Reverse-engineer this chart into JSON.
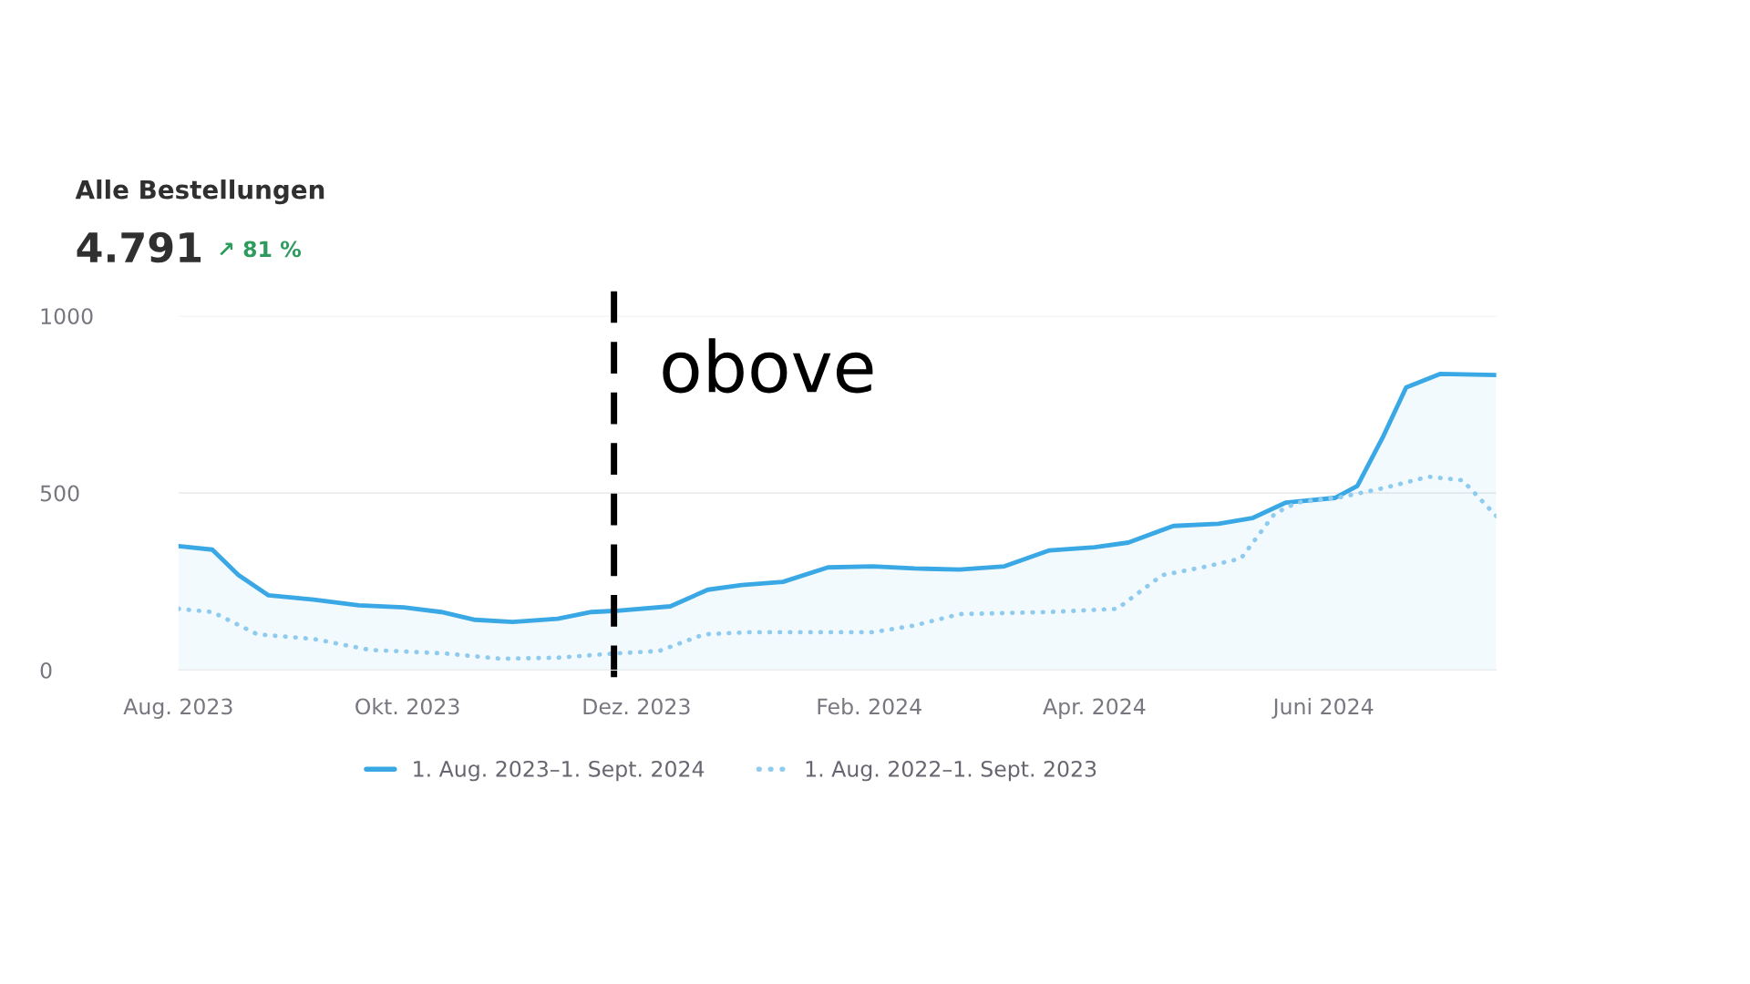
{
  "chart_data": {
    "type": "line",
    "title": "Alle Bestellungen",
    "subtitle": "4.791",
    "annotations": [
      "↗ 81 %"
    ],
    "series": [
      {
        "name": "1. Aug. 2023–1. Sept. 2024",
        "type": "area",
        "color": "#3aa8e4",
        "line_style": "solid",
        "x": [
          "2023-08-01",
          "2023-08-10",
          "2023-08-17",
          "2023-08-25",
          "2023-09-06",
          "2023-09-18",
          "2023-09-30",
          "2023-10-10",
          "2023-10-19",
          "2023-10-29",
          "2023-11-10",
          "2023-11-19",
          "2023-11-25",
          "2023-12-10",
          "2023-12-20",
          "2023-12-29",
          "2024-01-09",
          "2024-01-21",
          "2024-02-02",
          "2024-02-13",
          "2024-02-25",
          "2024-03-08",
          "2024-03-20",
          "2024-04-01",
          "2024-04-10",
          "2024-04-22",
          "2024-05-04",
          "2024-05-13",
          "2024-05-22",
          "2024-06-04",
          "2024-06-10",
          "2024-06-17",
          "2024-06-23",
          "2024-07-02",
          "2024-07-17"
        ],
        "values": [
          350,
          340,
          268,
          211,
          199,
          183,
          177,
          164,
          142,
          136,
          145,
          164,
          167,
          180,
          227,
          240,
          249,
          290,
          293,
          287,
          284,
          293,
          338,
          347,
          360,
          407,
          413,
          429,
          473,
          486,
          520,
          662,
          798,
          836,
          833
        ]
      },
      {
        "name": "1. Aug. 2022–1. Sept. 2023",
        "color": "#8ecbee",
        "line_style": "dotted",
        "x": [
          "2023-08-01",
          "2023-08-10",
          "2023-08-22",
          "2023-09-06",
          "2023-09-21",
          "2023-10-11",
          "2023-10-26",
          "2023-11-10",
          "2023-11-25",
          "2023-12-07",
          "2023-12-19",
          "2023-12-31",
          "2024-02-02",
          "2024-02-13",
          "2024-02-25",
          "2024-03-20",
          "2024-04-07",
          "2024-04-19",
          "2024-05-01",
          "2024-05-10",
          "2024-05-19",
          "2024-05-25",
          "2024-06-06",
          "2024-06-17",
          "2024-06-29",
          "2024-07-08",
          "2024-07-17"
        ],
        "values": [
          173,
          164,
          101,
          88,
          57,
          47,
          32,
          35,
          47,
          54,
          101,
          107,
          107,
          126,
          158,
          164,
          173,
          268,
          293,
          315,
          442,
          473,
          489,
          514,
          546,
          536,
          435
        ]
      }
    ],
    "xlim": [
      "2023-08-01",
      "2024-07-17"
    ],
    "xticks": [
      {
        "value": "2023-08-01",
        "label": "Aug. 2023"
      },
      {
        "value": "2023-10-01",
        "label": "Okt. 2023"
      },
      {
        "value": "2023-12-01",
        "label": "Dez. 2023"
      },
      {
        "value": "2024-02-01",
        "label": "Feb. 2024"
      },
      {
        "value": "2024-04-01",
        "label": "Apr. 2024"
      },
      {
        "value": "2024-06-01",
        "label": "Juni 2024"
      }
    ],
    "ylim": [
      0,
      1000
    ],
    "yticks": [
      0,
      500,
      1000
    ],
    "ref_lines": [
      {
        "axis": "x",
        "value": "2023-11-25",
        "label": "obove",
        "color": "#000000",
        "line_style": "dashed"
      }
    ],
    "grid": "y",
    "legend": "bottom"
  }
}
